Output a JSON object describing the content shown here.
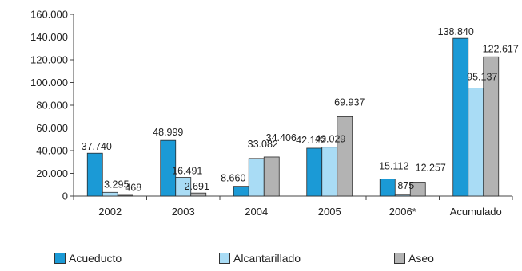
{
  "chart_data": {
    "type": "bar",
    "title": "",
    "xlabel": "",
    "ylabel": "",
    "ylim": [
      0,
      160000
    ],
    "yticks": [
      "0",
      "20.000",
      "40.000",
      "60.000",
      "80.000",
      "100.000",
      "120.000",
      "140.000",
      "160.000"
    ],
    "categories": [
      "2002",
      "2003",
      "2004",
      "2005",
      "2006*",
      "Acumulado"
    ],
    "series": [
      {
        "name": "Acueducto",
        "color": "#1b9ad6",
        "values": [
          37740,
          48999,
          8660,
          42122,
          15112,
          138840
        ],
        "labels": [
          "37.740",
          "48.999",
          "8.660",
          "42.122",
          "15.112",
          "138.840"
        ]
      },
      {
        "name": "Alcantarillado",
        "color": "#a9dcf5",
        "values": [
          3295,
          16491,
          33082,
          43029,
          875,
          95137
        ],
        "labels": [
          "3.295",
          "16.491",
          "33.082",
          "43.029",
          "875",
          "95.137"
        ]
      },
      {
        "name": "Aseo",
        "color": "#b3b3b3",
        "values": [
          468,
          2691,
          34406,
          69937,
          12257,
          122617
        ],
        "labels": [
          "468",
          "2.691",
          "34.406",
          "69.937",
          "12.257",
          "122.617"
        ]
      }
    ],
    "grid": false,
    "legend": "bottom"
  }
}
